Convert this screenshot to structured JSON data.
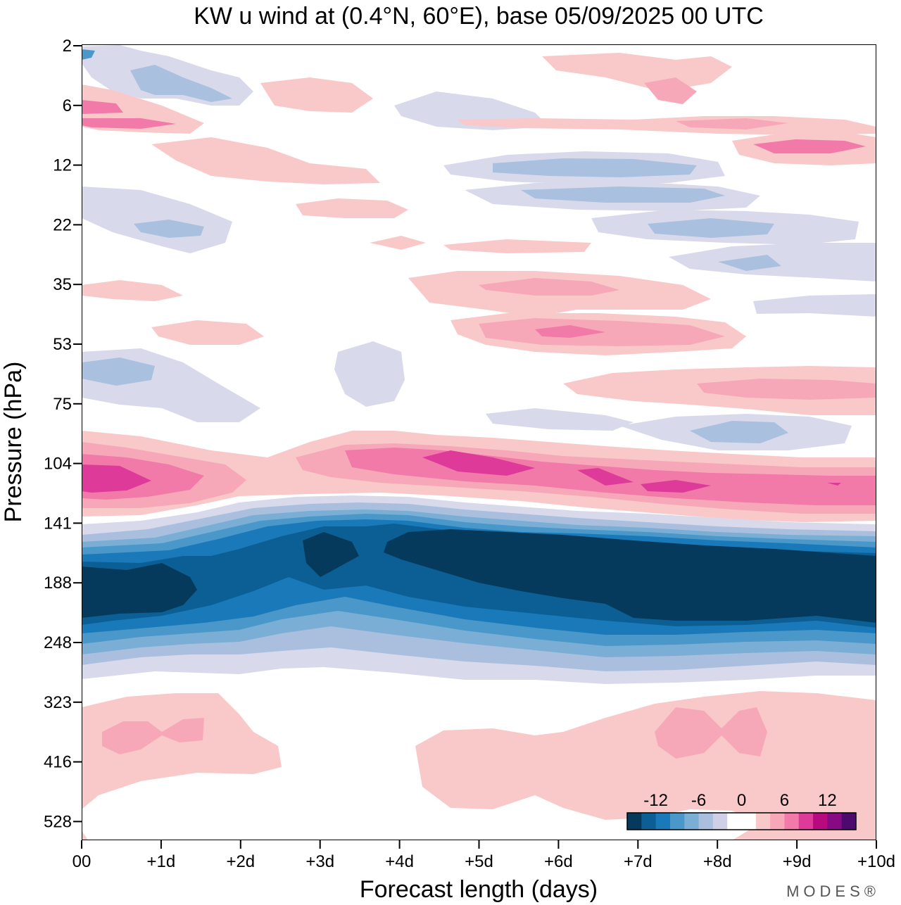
{
  "chart_data": {
    "type": "filled-contour",
    "title": "KW u wind at (0.4°N, 60°E),  base 05/09/2025  00 UTC",
    "xlabel": "Forecast length (days)",
    "ylabel": "Pressure (hPa)",
    "x_ticks": [
      "00",
      "+1d",
      "+2d",
      "+3d",
      "+4d",
      "+5d",
      "+6d",
      "+7d",
      "+8d",
      "+9d",
      "+10d"
    ],
    "y_ticks": [
      "2",
      "6",
      "12",
      "22",
      "35",
      "53",
      "75",
      "104",
      "141",
      "188",
      "248",
      "323",
      "416",
      "528"
    ],
    "y_scale": "log (descending, top = 2 hPa)",
    "contour_levels_ms": [
      -16,
      -14,
      -12,
      -10,
      -8,
      -6,
      -4,
      -2,
      2,
      4,
      6,
      8,
      10,
      12,
      14,
      16
    ],
    "colorbar_labels": [
      "-12",
      "-6",
      "0",
      "6",
      "12"
    ],
    "colorbar_colors": [
      "#063a5c",
      "#0c5f94",
      "#1979b9",
      "#4a97c9",
      "#7aaed4",
      "#aabfde",
      "#cfd0e6",
      "#ffffff",
      "#ffffff",
      "#f9c9c9",
      "#f7a8b8",
      "#f17aa8",
      "#de3a9a",
      "#b8097e",
      "#850a84",
      "#4c0a6e"
    ],
    "features": [
      {
        "name": "easterly jet core",
        "pressure_hPa_range": [
          150,
          240
        ],
        "u_ms": -16,
        "x_days_range": [
          0,
          10
        ]
      },
      {
        "name": "westerly band",
        "pressure_hPa_range": [
          95,
          130
        ],
        "u_ms": 10,
        "x_days_range": [
          0,
          10
        ]
      },
      {
        "name": "weak westerly lower troposphere",
        "pressure_hPa_range": [
          320,
          530
        ],
        "u_ms": 3,
        "x_days_range": [
          0,
          10
        ]
      }
    ]
  },
  "branding": {
    "logo_text": "MODES®"
  }
}
